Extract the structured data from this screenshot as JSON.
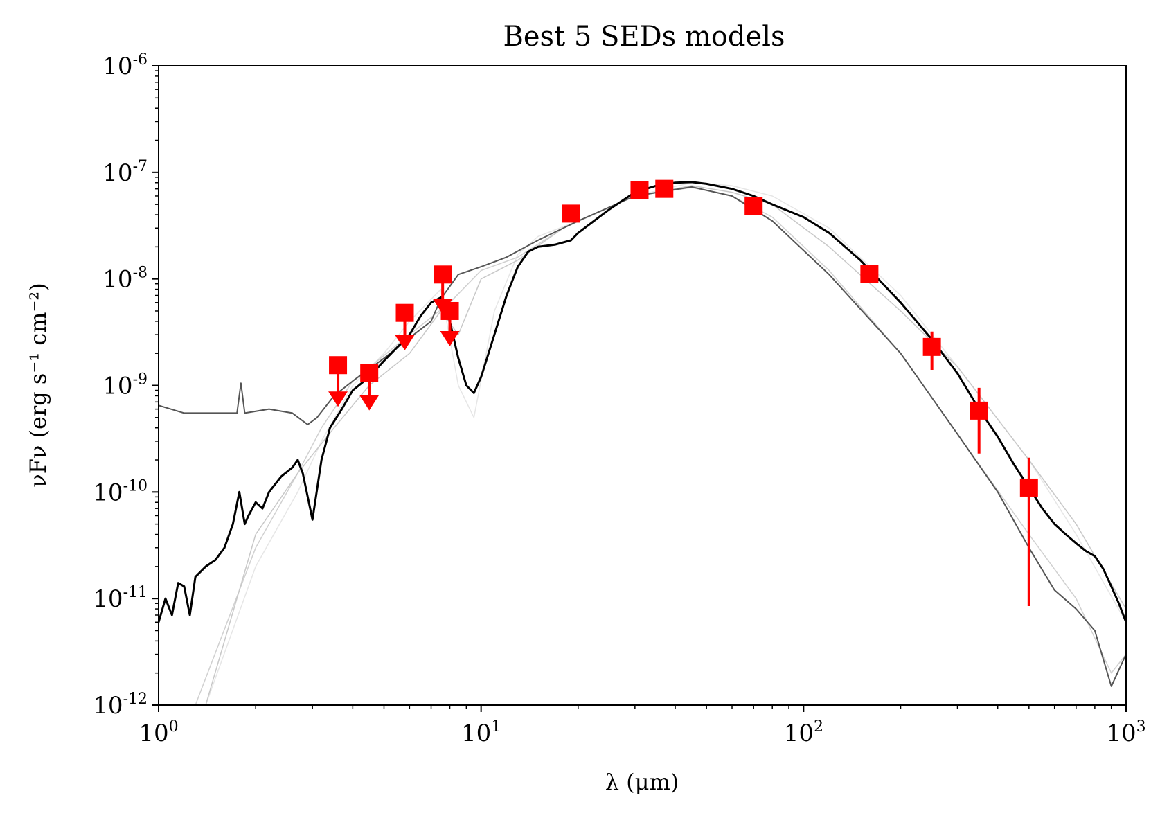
{
  "chart_data": {
    "type": "line",
    "title": "Best 5 SEDs models",
    "xlabel": "λ (μm)",
    "ylabel": "νFν (erg s⁻¹ cm⁻²)",
    "xscale": "log",
    "yscale": "log",
    "xlim": [
      1,
      1000
    ],
    "ylim": [
      1e-12,
      1e-06
    ],
    "x_ticks": [
      {
        "value": 1,
        "base": "10",
        "exp": "0"
      },
      {
        "value": 10,
        "base": "10",
        "exp": "1"
      },
      {
        "value": 100,
        "base": "10",
        "exp": "2"
      },
      {
        "value": 1000,
        "base": "10",
        "exp": "3"
      }
    ],
    "y_ticks": [
      {
        "value": 1e-12,
        "base": "10",
        "exp": "-12"
      },
      {
        "value": 1e-11,
        "base": "10",
        "exp": "-11"
      },
      {
        "value": 1e-10,
        "base": "10",
        "exp": "-10"
      },
      {
        "value": 1e-09,
        "base": "10",
        "exp": "-9"
      },
      {
        "value": 1e-08,
        "base": "10",
        "exp": "-8"
      },
      {
        "value": 1e-07,
        "base": "10",
        "exp": "-7"
      },
      {
        "value": 1e-06,
        "base": "10",
        "exp": "-6"
      }
    ],
    "grid": false,
    "colors": {
      "best_model": "#000000",
      "data": "#ff0000"
    },
    "series": [
      {
        "color": "#e6e6e6",
        "width": 1.5,
        "x": [
          1.4,
          2,
          2.7,
          3.2,
          4,
          5,
          6,
          7.5,
          8.5,
          9.5,
          11,
          13,
          15,
          20,
          30,
          45,
          60,
          80,
          120,
          200,
          300,
          500,
          700,
          1000
        ],
        "y": [
          1e-12,
          2e-11,
          1e-10,
          3e-10,
          1e-09,
          2e-09,
          4e-09,
          8e-09,
          1e-09,
          5e-10,
          5e-09,
          1.7e-08,
          2.5e-08,
          3.5e-08,
          6e-08,
          8e-08,
          7.5e-08,
          6e-08,
          3e-08,
          7e-09,
          1.5e-09,
          2e-10,
          4e-11,
          6e-12
        ]
      },
      {
        "color": "#d0d0d0",
        "width": 1.5,
        "x": [
          1.3,
          2,
          2.7,
          3.2,
          4,
          6,
          8,
          10,
          13,
          18,
          30,
          45,
          60,
          80,
          120,
          200,
          300,
          500,
          700,
          900,
          1000
        ],
        "y": [
          1e-12,
          3e-11,
          1.5e-10,
          4e-10,
          1.1e-09,
          3e-09,
          6e-09,
          1.2e-08,
          1.6e-08,
          3e-08,
          6e-08,
          7.2e-08,
          6e-08,
          3.8e-08,
          1.2e-08,
          2e-09,
          3.5e-10,
          4e-11,
          1e-11,
          2e-12,
          3e-12
        ]
      },
      {
        "color": "#c8c8c8",
        "width": 1.5,
        "x": [
          1.4,
          2,
          2.7,
          3.5,
          4.5,
          6,
          7.5,
          8.5,
          10,
          13,
          18,
          30,
          45,
          60,
          80,
          120,
          200,
          300,
          500,
          700,
          1000
        ],
        "y": [
          1e-12,
          4e-11,
          1.5e-10,
          4e-10,
          1e-09,
          2e-09,
          5e-09,
          3e-09,
          1e-08,
          1.5e-08,
          3e-08,
          6e-08,
          7.5e-08,
          6.5e-08,
          5e-08,
          2e-08,
          5e-09,
          1.5e-09,
          2e-10,
          5e-11,
          8e-12
        ]
      },
      {
        "color": "#555555",
        "width": 2,
        "x": [
          1,
          1.2,
          1.5,
          1.75,
          1.8,
          1.85,
          2.2,
          2.6,
          2.9,
          3.1,
          3.5,
          4,
          5,
          6,
          7,
          7.5,
          8.5,
          10,
          12,
          15,
          20,
          30,
          45,
          60,
          80,
          120,
          200,
          300,
          400,
          500,
          600,
          700,
          800,
          900,
          1000
        ],
        "y": [
          6.5e-10,
          5.5e-10,
          5.5e-10,
          5.5e-10,
          1.05e-09,
          5.5e-10,
          6e-10,
          5.5e-10,
          4.3e-10,
          5e-10,
          8e-10,
          1.1e-09,
          1.8e-09,
          2.8e-09,
          4e-09,
          6.5e-09,
          1.1e-08,
          1.3e-08,
          1.6e-08,
          2.3e-08,
          3.5e-08,
          6e-08,
          7.3e-08,
          6e-08,
          3.5e-08,
          1.1e-08,
          2e-09,
          3.5e-10,
          1e-10,
          3e-11,
          1.2e-11,
          8e-12,
          5e-12,
          1.5e-12,
          3e-12
        ]
      },
      {
        "color": "#000000",
        "width": 3,
        "x": [
          1,
          1.05,
          1.1,
          1.15,
          1.2,
          1.25,
          1.3,
          1.4,
          1.5,
          1.6,
          1.7,
          1.78,
          1.85,
          1.9,
          2,
          2.1,
          2.2,
          2.4,
          2.6,
          2.7,
          2.8,
          3,
          3.2,
          3.4,
          3.7,
          4,
          4.5,
          5,
          6,
          6.5,
          7,
          7.5,
          8,
          8.5,
          9,
          9.5,
          10,
          11,
          12,
          13,
          14,
          15,
          17,
          19,
          20,
          25,
          30,
          35,
          40,
          45,
          50,
          60,
          70,
          80,
          100,
          120,
          150,
          200,
          250,
          300,
          350,
          400,
          450,
          500,
          550,
          600,
          650,
          700,
          750,
          800,
          850,
          900,
          950,
          1000
        ],
        "y": [
          6e-12,
          1e-11,
          7e-12,
          1.4e-11,
          1.3e-11,
          7e-12,
          1.6e-11,
          2e-11,
          2.3e-11,
          3e-11,
          5e-11,
          1e-10,
          5e-11,
          6e-11,
          8e-11,
          7e-11,
          1e-10,
          1.4e-10,
          1.7e-10,
          2e-10,
          1.5e-10,
          5.5e-11,
          2e-10,
          4e-10,
          6e-10,
          9e-10,
          1.2e-09,
          1.7e-09,
          3e-09,
          4.5e-09,
          6e-09,
          6.7e-09,
          4e-09,
          1.8e-09,
          1e-09,
          8.5e-10,
          1.2e-09,
          3e-09,
          7e-09,
          1.3e-08,
          1.8e-08,
          2e-08,
          2.1e-08,
          2.3e-08,
          2.7e-08,
          4.5e-08,
          6.5e-08,
          7.5e-08,
          8e-08,
          8.1e-08,
          7.8e-08,
          7e-08,
          6e-08,
          5e-08,
          3.8e-08,
          2.7e-08,
          1.5e-08,
          6e-09,
          2.7e-09,
          1.3e-09,
          6e-10,
          3.3e-10,
          1.8e-10,
          1.1e-10,
          7e-11,
          5e-11,
          4e-11,
          3.3e-11,
          2.8e-11,
          2.5e-11,
          1.9e-11,
          1.3e-11,
          9e-12,
          6e-12
        ]
      }
    ],
    "points": [
      {
        "x": 3.6,
        "y": 1.55e-09,
        "upper_limit": true,
        "arrow_to": 6.5e-10
      },
      {
        "x": 4.5,
        "y": 1.3e-09,
        "upper_limit": true,
        "arrow_to": 6e-10
      },
      {
        "x": 5.8,
        "y": 4.8e-09,
        "upper_limit": true,
        "arrow_to": 2.2e-09
      },
      {
        "x": 7.6,
        "y": 1.1e-08,
        "upper_limit": true,
        "arrow_to": 4.8e-09
      },
      {
        "x": 8.0,
        "y": 5e-09,
        "upper_limit": true,
        "arrow_to": 2.4e-09
      },
      {
        "x": 19,
        "y": 4.1e-08
      },
      {
        "x": 31,
        "y": 6.8e-08
      },
      {
        "x": 37,
        "y": 7e-08
      },
      {
        "x": 70,
        "y": 4.8e-08
      },
      {
        "x": 160,
        "y": 1.12e-08
      },
      {
        "x": 250,
        "y": 2.3e-09,
        "yerr": [
          1.4e-09,
          3.2e-09
        ]
      },
      {
        "x": 350,
        "y": 5.8e-10,
        "yerr": [
          2.3e-10,
          9.5e-10
        ]
      },
      {
        "x": 500,
        "y": 1.1e-10,
        "yerr": [
          8.5e-12,
          2.1e-10
        ]
      }
    ]
  }
}
